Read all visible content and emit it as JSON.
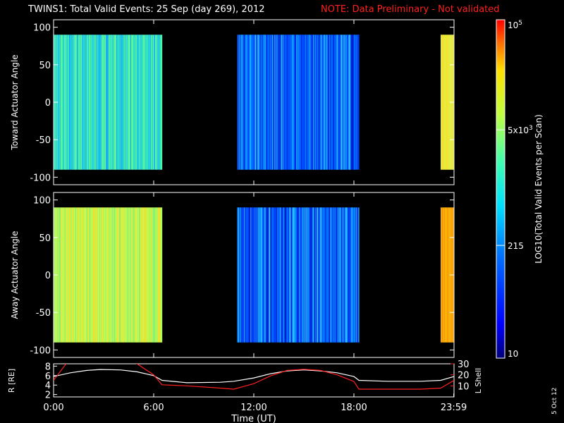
{
  "title": {
    "main": "TWINS1: Total Valid Events: 25 Sep (day 269), 2012",
    "note": "NOTE: Data Preliminary - Not validated"
  },
  "colorbar": {
    "label": "LOG10(Total Valid Events per Scan)",
    "ticks": [
      {
        "value": 100000,
        "label": "10^5"
      },
      {
        "value": 5000,
        "label": "5x10^3"
      },
      {
        "value": 215,
        "label": "215"
      },
      {
        "value": 10,
        "label": "10"
      }
    ],
    "range": [
      10,
      100000
    ],
    "scale": "log"
  },
  "footer_date": "5 Oct 12",
  "chart_data": [
    {
      "type": "heatmap",
      "ylabel": "Toward Actuator Angle",
      "ylim": [
        -110,
        110
      ],
      "yticks": [
        "100",
        "50",
        "0",
        "-50",
        "-100"
      ],
      "xlim_hours": [
        0,
        24
      ],
      "data_y_range": [
        -90,
        90
      ],
      "segments": [
        {
          "start_h": 0.0,
          "end_h": 6.5,
          "level": "cyan-green"
        },
        {
          "start_h": 11.0,
          "end_h": 18.3,
          "level": "blue"
        },
        {
          "start_h": 23.2,
          "end_h": 24.0,
          "level": "yellow"
        }
      ]
    },
    {
      "type": "heatmap",
      "ylabel": "Away Actuator Angle",
      "ylim": [
        -110,
        110
      ],
      "yticks": [
        "100",
        "50",
        "0",
        "-50",
        "-100"
      ],
      "xlim_hours": [
        0,
        24
      ],
      "data_y_range": [
        -90,
        90
      ],
      "segments": [
        {
          "start_h": 0.0,
          "end_h": 6.5,
          "level": "yellow-green"
        },
        {
          "start_h": 11.0,
          "end_h": 18.3,
          "level": "blue"
        },
        {
          "start_h": 23.2,
          "end_h": 24.0,
          "level": "orange"
        }
      ]
    },
    {
      "type": "line",
      "ylabel_left": "R [RE]",
      "ylabel_right": "L Shell",
      "xlabel": "Time (UT)",
      "xticks": [
        "0:00",
        "6:00",
        "12:00",
        "18:00",
        "23:59"
      ],
      "yticks_left": [
        "2",
        "4",
        "6",
        "8"
      ],
      "yticks_right": [
        "10",
        "20",
        "30"
      ],
      "ylim_left": [
        1.5,
        8.5
      ],
      "ylim_right": [
        0,
        30
      ],
      "series": [
        {
          "axis": "left",
          "color": "#ffffff",
          "x": [
            0,
            1,
            2,
            2.8,
            4,
            5,
            6,
            6.5,
            8,
            10,
            10.8,
            12,
            13,
            14,
            15,
            16,
            17,
            18,
            18.3,
            20,
            22,
            23.2,
            24
          ],
          "y": [
            5.8,
            6.6,
            7.1,
            7.3,
            7.2,
            6.8,
            6.0,
            5.0,
            4.5,
            4.6,
            4.8,
            5.5,
            6.4,
            7.0,
            7.2,
            7.0,
            6.6,
            5.8,
            5.0,
            4.8,
            4.8,
            5.0,
            5.8
          ]
        },
        {
          "axis": "right",
          "color": "#ff2020",
          "x": [
            0,
            0.5,
            1,
            4.2,
            5,
            6,
            6.5,
            8,
            10,
            10.8,
            12,
            13,
            14,
            15,
            16,
            17,
            18,
            18.3,
            20,
            22,
            23.2,
            24
          ],
          "y": [
            15,
            25,
            35,
            35,
            30,
            20,
            11,
            10,
            8,
            7,
            12,
            19,
            24,
            25,
            24,
            20,
            14,
            7,
            7,
            7,
            8,
            15
          ]
        }
      ]
    }
  ]
}
